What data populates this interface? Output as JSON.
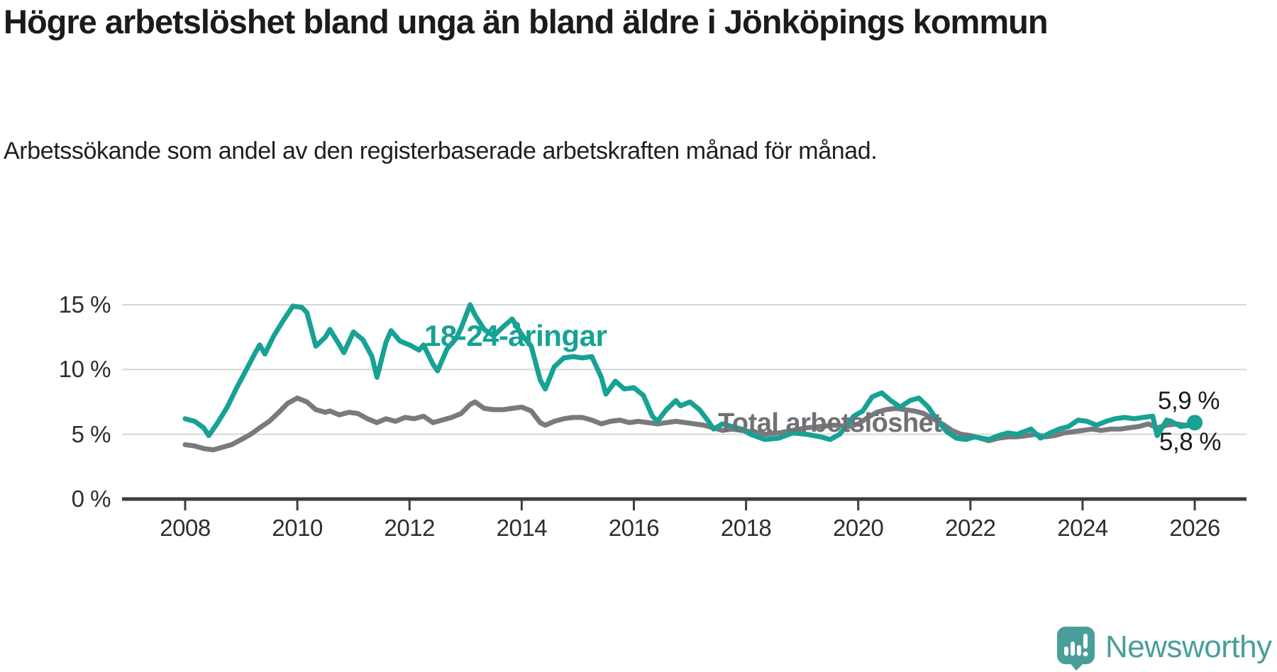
{
  "chart_data": {
    "type": "line",
    "title": "Högre arbetslöshet bland unga än bland äldre i Jönköpings kommun",
    "subtitle": "Arbetssökande som andel av den registerbaserade arbetskraften månad för månad.",
    "grid": "horizontal-gridlines-only",
    "legend_position": "inline-labels-on-chart",
    "x_axis": {
      "ticks": [
        2008,
        2010,
        2012,
        2014,
        2016,
        2018,
        2020,
        2022,
        2024,
        2026
      ],
      "range_years": [
        2006.9,
        2026.9
      ]
    },
    "y_axis": {
      "unit": "%",
      "ticks": [
        {
          "value": 15,
          "label": "15 %"
        },
        {
          "value": 10,
          "label": "10 %"
        },
        {
          "value": 5,
          "label": "5 %"
        },
        {
          "value": 0,
          "label": "0 %"
        }
      ],
      "range": [
        0,
        16.6
      ]
    },
    "series": [
      {
        "name": "Total arbetslöshet",
        "inline_label": "Total arbetslöshet",
        "end_label": "5,8 %",
        "end_value": 5.8,
        "color": "#7a7a7e",
        "points": [
          [
            2008.0,
            4.2
          ],
          [
            2008.17,
            4.1
          ],
          [
            2008.33,
            3.9
          ],
          [
            2008.5,
            3.8
          ],
          [
            2008.67,
            4.0
          ],
          [
            2008.83,
            4.2
          ],
          [
            2009.0,
            4.6
          ],
          [
            2009.17,
            5.0
          ],
          [
            2009.33,
            5.5
          ],
          [
            2009.5,
            6.0
          ],
          [
            2009.67,
            6.7
          ],
          [
            2009.83,
            7.4
          ],
          [
            2010.0,
            7.8
          ],
          [
            2010.17,
            7.5
          ],
          [
            2010.33,
            6.9
          ],
          [
            2010.5,
            6.7
          ],
          [
            2010.58,
            6.8
          ],
          [
            2010.75,
            6.5
          ],
          [
            2010.92,
            6.7
          ],
          [
            2011.08,
            6.6
          ],
          [
            2011.25,
            6.2
          ],
          [
            2011.42,
            5.9
          ],
          [
            2011.58,
            6.2
          ],
          [
            2011.75,
            6.0
          ],
          [
            2011.92,
            6.3
          ],
          [
            2012.08,
            6.2
          ],
          [
            2012.25,
            6.4
          ],
          [
            2012.42,
            5.9
          ],
          [
            2012.58,
            6.1
          ],
          [
            2012.75,
            6.3
          ],
          [
            2012.92,
            6.6
          ],
          [
            2013.08,
            7.3
          ],
          [
            2013.17,
            7.5
          ],
          [
            2013.33,
            7.0
          ],
          [
            2013.5,
            6.9
          ],
          [
            2013.67,
            6.9
          ],
          [
            2013.83,
            7.0
          ],
          [
            2014.0,
            7.1
          ],
          [
            2014.17,
            6.8
          ],
          [
            2014.33,
            5.9
          ],
          [
            2014.42,
            5.7
          ],
          [
            2014.58,
            6.0
          ],
          [
            2014.75,
            6.2
          ],
          [
            2014.92,
            6.3
          ],
          [
            2015.08,
            6.3
          ],
          [
            2015.25,
            6.1
          ],
          [
            2015.42,
            5.8
          ],
          [
            2015.58,
            6.0
          ],
          [
            2015.75,
            6.1
          ],
          [
            2015.92,
            5.9
          ],
          [
            2016.08,
            6.0
          ],
          [
            2016.25,
            5.9
          ],
          [
            2016.42,
            5.8
          ],
          [
            2016.58,
            5.9
          ],
          [
            2016.75,
            6.0
          ],
          [
            2016.92,
            5.9
          ],
          [
            2017.08,
            5.8
          ],
          [
            2017.25,
            5.7
          ],
          [
            2017.42,
            5.5
          ],
          [
            2017.58,
            5.3
          ],
          [
            2017.75,
            5.4
          ],
          [
            2017.92,
            5.3
          ],
          [
            2018.08,
            5.2
          ],
          [
            2018.33,
            5.0
          ],
          [
            2018.58,
            5.1
          ],
          [
            2018.83,
            5.3
          ],
          [
            2019.08,
            5.5
          ],
          [
            2019.33,
            5.6
          ],
          [
            2019.58,
            5.7
          ],
          [
            2019.83,
            5.6
          ],
          [
            2020.0,
            5.8
          ],
          [
            2020.17,
            6.3
          ],
          [
            2020.33,
            6.7
          ],
          [
            2020.5,
            6.9
          ],
          [
            2020.67,
            7.0
          ],
          [
            2020.83,
            6.9
          ],
          [
            2021.0,
            6.8
          ],
          [
            2021.17,
            6.6
          ],
          [
            2021.33,
            6.2
          ],
          [
            2021.5,
            5.8
          ],
          [
            2021.67,
            5.3
          ],
          [
            2021.83,
            5.0
          ],
          [
            2022.0,
            4.9
          ],
          [
            2022.17,
            4.7
          ],
          [
            2022.33,
            4.5
          ],
          [
            2022.5,
            4.7
          ],
          [
            2022.67,
            4.8
          ],
          [
            2022.83,
            4.8
          ],
          [
            2023.0,
            4.9
          ],
          [
            2023.17,
            5.0
          ],
          [
            2023.33,
            4.8
          ],
          [
            2023.5,
            4.9
          ],
          [
            2023.67,
            5.1
          ],
          [
            2023.83,
            5.2
          ],
          [
            2024.0,
            5.3
          ],
          [
            2024.17,
            5.4
          ],
          [
            2024.33,
            5.3
          ],
          [
            2024.5,
            5.4
          ],
          [
            2024.67,
            5.4
          ],
          [
            2024.83,
            5.5
          ],
          [
            2025.0,
            5.6
          ],
          [
            2025.17,
            5.8
          ],
          [
            2025.33,
            5.5
          ],
          [
            2025.5,
            5.7
          ],
          [
            2025.67,
            5.8
          ],
          [
            2025.83,
            5.7
          ],
          [
            2026.0,
            5.8
          ]
        ]
      },
      {
        "name": "18-24-åringar",
        "inline_label": "18-24-åringar",
        "end_label": "5,9 %",
        "end_value": 5.9,
        "color": "#16a294",
        "end_dot": true,
        "points": [
          [
            2008.0,
            6.2
          ],
          [
            2008.17,
            6.0
          ],
          [
            2008.33,
            5.5
          ],
          [
            2008.42,
            4.9
          ],
          [
            2008.58,
            5.9
          ],
          [
            2008.75,
            7.1
          ],
          [
            2008.92,
            8.6
          ],
          [
            2009.08,
            9.9
          ],
          [
            2009.25,
            11.3
          ],
          [
            2009.33,
            11.9
          ],
          [
            2009.42,
            11.2
          ],
          [
            2009.58,
            12.6
          ],
          [
            2009.75,
            13.8
          ],
          [
            2009.92,
            14.9
          ],
          [
            2010.08,
            14.8
          ],
          [
            2010.17,
            14.4
          ],
          [
            2010.33,
            11.8
          ],
          [
            2010.5,
            12.5
          ],
          [
            2010.58,
            13.1
          ],
          [
            2010.75,
            11.9
          ],
          [
            2010.83,
            11.3
          ],
          [
            2011.0,
            12.9
          ],
          [
            2011.17,
            12.3
          ],
          [
            2011.33,
            11.0
          ],
          [
            2011.42,
            9.4
          ],
          [
            2011.58,
            12.1
          ],
          [
            2011.67,
            13.0
          ],
          [
            2011.83,
            12.2
          ],
          [
            2012.0,
            11.9
          ],
          [
            2012.17,
            11.5
          ],
          [
            2012.25,
            11.9
          ],
          [
            2012.42,
            10.4
          ],
          [
            2012.5,
            9.9
          ],
          [
            2012.67,
            11.6
          ],
          [
            2012.83,
            12.4
          ],
          [
            2012.92,
            13.2
          ],
          [
            2013.08,
            15.0
          ],
          [
            2013.17,
            14.2
          ],
          [
            2013.33,
            13.1
          ],
          [
            2013.5,
            12.6
          ],
          [
            2013.67,
            13.3
          ],
          [
            2013.83,
            13.9
          ],
          [
            2014.0,
            12.7
          ],
          [
            2014.17,
            11.8
          ],
          [
            2014.33,
            9.2
          ],
          [
            2014.42,
            8.5
          ],
          [
            2014.58,
            10.2
          ],
          [
            2014.75,
            10.9
          ],
          [
            2014.92,
            11.0
          ],
          [
            2015.08,
            10.9
          ],
          [
            2015.25,
            11.0
          ],
          [
            2015.42,
            9.4
          ],
          [
            2015.5,
            8.1
          ],
          [
            2015.67,
            9.1
          ],
          [
            2015.83,
            8.5
          ],
          [
            2016.0,
            8.6
          ],
          [
            2016.17,
            8.0
          ],
          [
            2016.33,
            6.4
          ],
          [
            2016.42,
            6.0
          ],
          [
            2016.58,
            6.9
          ],
          [
            2016.75,
            7.6
          ],
          [
            2016.83,
            7.2
          ],
          [
            2017.0,
            7.5
          ],
          [
            2017.17,
            6.9
          ],
          [
            2017.33,
            6.0
          ],
          [
            2017.42,
            5.4
          ],
          [
            2017.58,
            5.8
          ],
          [
            2017.75,
            5.6
          ],
          [
            2017.92,
            5.4
          ],
          [
            2018.08,
            5.0
          ],
          [
            2018.33,
            4.6
          ],
          [
            2018.58,
            4.7
          ],
          [
            2018.83,
            5.1
          ],
          [
            2019.08,
            5.0
          ],
          [
            2019.33,
            4.8
          ],
          [
            2019.5,
            4.6
          ],
          [
            2019.67,
            5.0
          ],
          [
            2019.92,
            6.4
          ],
          [
            2020.08,
            6.8
          ],
          [
            2020.25,
            7.9
          ],
          [
            2020.42,
            8.2
          ],
          [
            2020.58,
            7.6
          ],
          [
            2020.75,
            7.1
          ],
          [
            2020.92,
            7.6
          ],
          [
            2021.08,
            7.8
          ],
          [
            2021.25,
            7.1
          ],
          [
            2021.42,
            6.0
          ],
          [
            2021.58,
            5.2
          ],
          [
            2021.75,
            4.7
          ],
          [
            2021.92,
            4.6
          ],
          [
            2022.08,
            4.8
          ],
          [
            2022.33,
            4.6
          ],
          [
            2022.5,
            4.9
          ],
          [
            2022.67,
            5.1
          ],
          [
            2022.83,
            5.0
          ],
          [
            2023.08,
            5.4
          ],
          [
            2023.25,
            4.7
          ],
          [
            2023.42,
            5.1
          ],
          [
            2023.58,
            5.4
          ],
          [
            2023.75,
            5.6
          ],
          [
            2023.92,
            6.1
          ],
          [
            2024.08,
            6.0
          ],
          [
            2024.25,
            5.7
          ],
          [
            2024.42,
            6.0
          ],
          [
            2024.58,
            6.2
          ],
          [
            2024.75,
            6.3
          ],
          [
            2024.92,
            6.2
          ],
          [
            2025.08,
            6.3
          ],
          [
            2025.25,
            6.4
          ],
          [
            2025.33,
            4.9
          ],
          [
            2025.5,
            6.1
          ],
          [
            2025.58,
            6.0
          ],
          [
            2025.75,
            5.6
          ],
          [
            2025.92,
            5.7
          ],
          [
            2026.0,
            5.9
          ]
        ]
      }
    ]
  },
  "branding": {
    "logo_text": "Newsworthy",
    "logo_color": "#4a9e99",
    "logo_icon": "speech-bubble-bar-chart-exclamation"
  },
  "colors": {
    "accent_teal": "#16a294",
    "series_gray": "#7a7a7e",
    "axis": "#3d3d3d",
    "gridline": "#d6d6d6",
    "text_dark": "#1b1b1b"
  }
}
